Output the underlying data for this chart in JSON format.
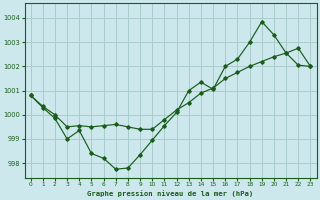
{
  "title": "Graphe pression niveau de la mer (hPa)",
  "bg_color": "#cce8ec",
  "grid_color": "#aacccc",
  "line_color": "#1a5c1a",
  "xlim": [
    -0.5,
    23.5
  ],
  "ylim": [
    997.4,
    1004.6
  ],
  "yticks": [
    998,
    999,
    1000,
    1001,
    1002,
    1003,
    1004
  ],
  "xticks": [
    0,
    1,
    2,
    3,
    4,
    5,
    6,
    7,
    8,
    9,
    10,
    11,
    12,
    13,
    14,
    15,
    16,
    17,
    18,
    19,
    20,
    21,
    22,
    23
  ],
  "s1_x": [
    0,
    1,
    2,
    3,
    4,
    5,
    6,
    7,
    8,
    9,
    10,
    11,
    12,
    13,
    14,
    15,
    16,
    17,
    18,
    19,
    20,
    21,
    22,
    23
  ],
  "s1_y": [
    1000.8,
    1000.35,
    1000.0,
    999.5,
    999.55,
    999.5,
    999.55,
    999.6,
    999.5,
    999.4,
    999.4,
    999.8,
    1000.2,
    1000.5,
    1000.9,
    1001.1,
    1001.5,
    1001.75,
    1002.0,
    1002.2,
    1002.4,
    1002.55,
    1002.75,
    1002.0
  ],
  "s2_x": [
    0,
    1,
    2,
    3,
    4,
    5,
    6,
    7,
    8,
    9,
    10,
    11,
    12,
    13,
    14,
    15,
    16,
    17,
    18,
    19,
    20,
    21,
    22,
    23
  ],
  "s2_y": [
    1000.8,
    1000.3,
    999.85,
    999.0,
    999.35,
    998.4,
    998.2,
    997.75,
    997.8,
    998.35,
    998.95,
    999.55,
    1000.1,
    1001.0,
    1001.35,
    1001.05,
    1002.0,
    1002.3,
    1003.0,
    1003.85,
    1003.3,
    1002.55,
    1002.05,
    1002.0
  ]
}
